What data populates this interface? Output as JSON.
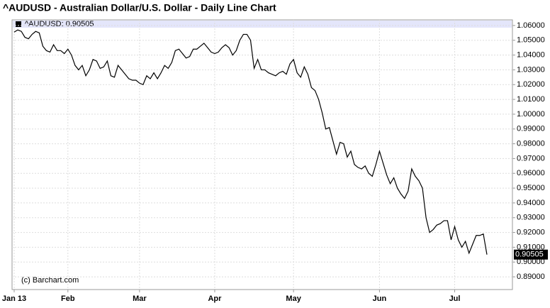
{
  "chart_data": {
    "type": "line",
    "title": "^AUDUSD - Australian Dollar/U.S. Dollar - Daily Line Chart",
    "watermark": "(c) Barchart.com",
    "categories": [
      "Jan 13",
      null,
      null,
      null,
      null,
      null,
      null,
      null,
      null,
      null,
      null,
      null,
      null,
      null,
      null,
      "Feb",
      null,
      null,
      null,
      null,
      null,
      null,
      null,
      null,
      null,
      null,
      null,
      null,
      null,
      null,
      null,
      null,
      null,
      null,
      null,
      "Mar",
      null,
      null,
      null,
      null,
      null,
      null,
      null,
      null,
      null,
      null,
      null,
      null,
      null,
      null,
      null,
      null,
      null,
      null,
      null,
      null,
      "Apr",
      null,
      null,
      null,
      null,
      null,
      null,
      null,
      null,
      null,
      null,
      null,
      null,
      null,
      null,
      null,
      null,
      null,
      null,
      null,
      null,
      null,
      "May",
      null,
      null,
      null,
      null,
      null,
      null,
      null,
      null,
      null,
      null,
      null,
      null,
      null,
      null,
      null,
      null,
      null,
      null,
      null,
      null,
      null,
      null,
      null,
      "Jun",
      null,
      null,
      null,
      null,
      null,
      null,
      null,
      null,
      null,
      null,
      null,
      null,
      null,
      null,
      null,
      null,
      null,
      null,
      null,
      null,
      "Jul",
      null,
      null,
      null,
      null,
      null,
      null,
      null,
      null,
      null
    ],
    "series": [
      {
        "name": "^AUDUSD: 0.90505",
        "color": "#000000",
        "values": [
          1.0555,
          1.057,
          1.056,
          1.052,
          1.051,
          1.054,
          1.056,
          1.055,
          1.046,
          1.043,
          1.042,
          1.047,
          1.043,
          1.043,
          1.041,
          1.044,
          1.04,
          1.033,
          1.03,
          1.033,
          1.026,
          1.03,
          1.037,
          1.036,
          1.031,
          1.032,
          1.036,
          1.026,
          1.025,
          1.033,
          1.03,
          1.027,
          1.024,
          1.023,
          1.023,
          1.021,
          1.02,
          1.026,
          1.024,
          1.028,
          1.024,
          1.028,
          1.033,
          1.031,
          1.035,
          1.043,
          1.044,
          1.041,
          1.038,
          1.039,
          1.044,
          1.044,
          1.046,
          1.048,
          1.045,
          1.042,
          1.041,
          1.042,
          1.045,
          1.047,
          1.045,
          1.04,
          1.043,
          1.05,
          1.054,
          1.054,
          1.05,
          1.031,
          1.037,
          1.03,
          1.03,
          1.028,
          1.027,
          1.026,
          1.028,
          1.029,
          1.027,
          1.034,
          1.037,
          1.028,
          1.025,
          1.032,
          1.027,
          1.018,
          1.016,
          1.01,
          1.001,
          0.99,
          0.991,
          0.982,
          0.973,
          0.981,
          0.98,
          0.971,
          0.975,
          0.966,
          0.964,
          0.963,
          0.965,
          0.96,
          0.958,
          0.966,
          0.975,
          0.967,
          0.959,
          0.953,
          0.957,
          0.95,
          0.946,
          0.943,
          0.948,
          0.963,
          0.958,
          0.955,
          0.95,
          0.93,
          0.92,
          0.922,
          0.925,
          0.926,
          0.928,
          0.928,
          0.915,
          0.924,
          0.915,
          0.91,
          0.914,
          0.906,
          0.912,
          0.918,
          0.918,
          0.919,
          0.90505
        ]
      }
    ],
    "ylim": [
      0.8814,
      1.0638
    ],
    "yticks": [
      {
        "value": 0.89,
        "label": "0.89000"
      },
      {
        "value": 0.9,
        "label": "0.90000"
      },
      {
        "value": 0.91,
        "label": "0.91000"
      },
      {
        "value": 0.92,
        "label": "0.92000"
      },
      {
        "value": 0.93,
        "label": "0.93000"
      },
      {
        "value": 0.94,
        "label": "0.94000"
      },
      {
        "value": 0.95,
        "label": "0.95000"
      },
      {
        "value": 0.96,
        "label": "0.96000"
      },
      {
        "value": 0.97,
        "label": "0.97000"
      },
      {
        "value": 0.98,
        "label": "0.98000"
      },
      {
        "value": 0.99,
        "label": "0.99000"
      },
      {
        "value": 1.0,
        "label": "1.00000"
      },
      {
        "value": 1.01,
        "label": "1.01000"
      },
      {
        "value": 1.02,
        "label": "1.02000"
      },
      {
        "value": 1.03,
        "label": "1.03000"
      },
      {
        "value": 1.04,
        "label": "1.04000"
      },
      {
        "value": 1.05,
        "label": "1.05000"
      },
      {
        "value": 1.06,
        "label": "1.06000"
      }
    ],
    "grid": true,
    "last_value_label": true
  }
}
